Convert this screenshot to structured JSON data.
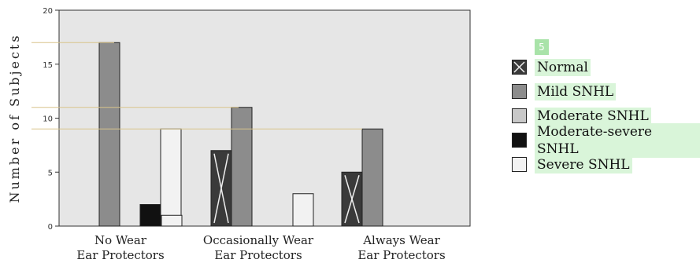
{
  "chart_data": {
    "type": "bar",
    "categories": [
      [
        "No Wear",
        "Ear Protectors"
      ],
      [
        "Occasionally Wear",
        "Ear Protectors"
      ],
      [
        "Always Wear",
        "Ear Protectors"
      ]
    ],
    "series": [
      {
        "name": "Normal",
        "values": [
          0,
          7,
          5
        ],
        "color": "#3a3a3a"
      },
      {
        "name": "Mild SNHL",
        "values": [
          17,
          11,
          9
        ],
        "color": "#8c8c8c"
      },
      {
        "name": "Moderate SNHL",
        "values": [
          0,
          0,
          0
        ],
        "color": "#c8c8c8"
      },
      {
        "name": "Moderate-severe SNHL",
        "values": [
          2,
          0,
          0
        ],
        "color": "#111111"
      },
      {
        "name": "Severe SNHL",
        "values": [
          9,
          3,
          0
        ],
        "color": "#f2f2f2"
      }
    ],
    "stray_bars": [
      {
        "category": 0,
        "value": 1,
        "color": "#f2f2f2"
      }
    ],
    "ylabel": "Number of Subjects",
    "ylim": [
      0,
      20
    ],
    "yticks": [
      0,
      5,
      10,
      15,
      20
    ],
    "reference_lines": [
      17,
      11,
      9
    ],
    "grid": false,
    "legend_position": "right"
  },
  "badge": "5"
}
